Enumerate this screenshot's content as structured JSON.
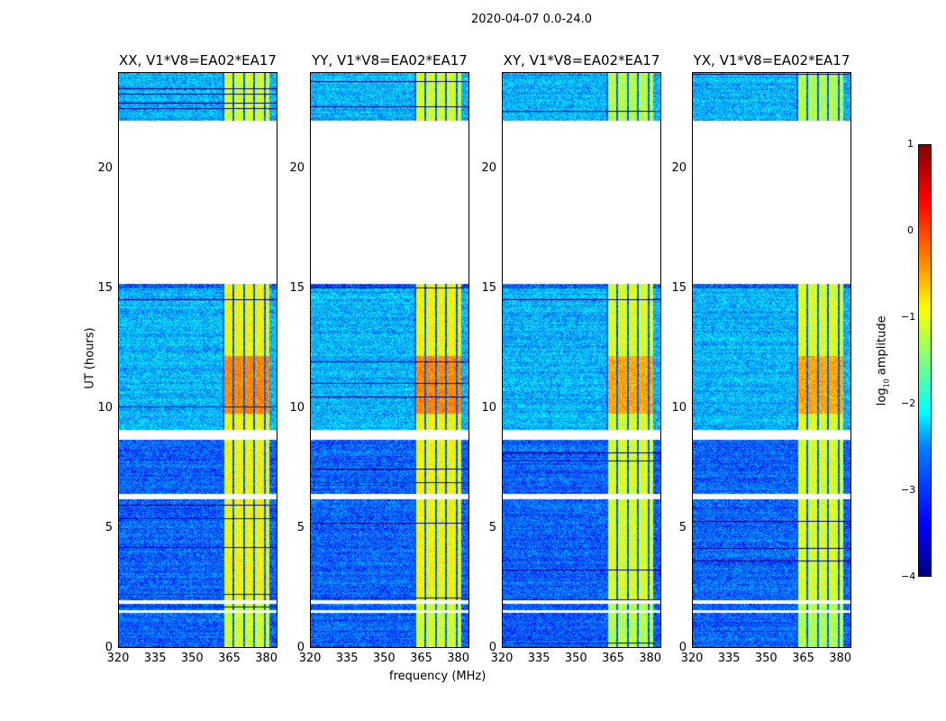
{
  "chart_data": {
    "type": "heatmap",
    "title": "2020-04-07 0.0-24.0",
    "xlabel": "frequency (MHz)",
    "ylabel": "UT (hours)",
    "xlim": [
      320,
      384.5
    ],
    "ylim": [
      0,
      24
    ],
    "xticks": [
      "320",
      "335",
      "350",
      "365",
      "380"
    ],
    "yticks": [
      "0",
      "5",
      "10",
      "15",
      "20"
    ],
    "panels": [
      {
        "title": "XX, V1*V8=EA02*EA17"
      },
      {
        "title": "YY, V1*V8=EA02*EA17"
      },
      {
        "title": "XY, V1*V8=EA02*EA17"
      },
      {
        "title": "YX, V1*V8=EA02*EA17"
      }
    ],
    "colorbar": {
      "label_prefix": "log",
      "label_sub": "10",
      "label_suffix": " amplitude",
      "range": [
        -4,
        1
      ],
      "ticks": [
        "1",
        "0",
        "−1",
        "−2",
        "−3",
        "−4"
      ],
      "colormap": "jet"
    },
    "rfi_band_mhz": [
      362,
      381
    ],
    "strongest_rfi_ut": [
      9.8,
      12.2
    ],
    "flagged_ut_ranges": [
      [
        1.5,
        1.6
      ],
      [
        1.85,
        2.0
      ],
      [
        6.2,
        6.45
      ],
      [
        8.7,
        9.1
      ],
      [
        15.2,
        22.0
      ]
    ]
  }
}
